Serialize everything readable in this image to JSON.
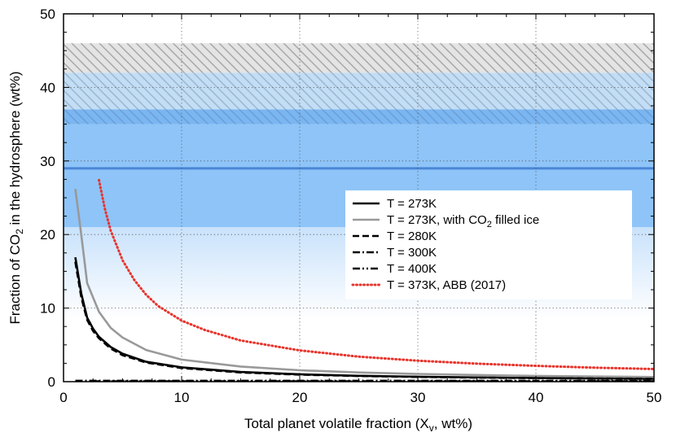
{
  "chart_data": {
    "type": "line",
    "xlabel": {
      "main": "Total planet volatile fraction (X",
      "sub": "v",
      "tail": ", wt%)"
    },
    "ylabel": {
      "main": "Fraction of CO",
      "sub": "2",
      "tail": " in the hydrosphere (wt%)"
    },
    "xlim": [
      0,
      50
    ],
    "ylim": [
      0,
      50
    ],
    "xticks": [
      0,
      10,
      20,
      30,
      40,
      50
    ],
    "yticks": [
      0,
      10,
      20,
      30,
      40,
      50
    ],
    "xtick_labels": [
      "0",
      "10",
      "20",
      "30",
      "40",
      "50"
    ],
    "ytick_labels": [
      "0",
      "10",
      "20",
      "30",
      "40",
      "50"
    ],
    "grid": "dotted",
    "bands": [
      {
        "name": "light-gradient-band",
        "y0": 8.5,
        "y1": 21,
        "color": "#cfe6fd"
      },
      {
        "name": "blue-band",
        "y0": 21,
        "y1": 35,
        "color": "#8ec4f8"
      },
      {
        "name": "darker-blue-band",
        "y0": 35,
        "y1": 37,
        "color": "#7ab6f2"
      },
      {
        "name": "light-hatched-band",
        "y0": 35,
        "y1": 42,
        "color": "#c3ddf4"
      },
      {
        "name": "gray-hatched-band",
        "y0": 42,
        "y1": 46,
        "color": "#e4e4e4"
      }
    ],
    "reference_line": {
      "name": "mean-line",
      "y": 29,
      "color": "#4a86d6"
    },
    "series": [
      {
        "name": "T = 273K",
        "style": "solid",
        "color": "#000000",
        "x": [
          1,
          1.5,
          2,
          2.5,
          3,
          4,
          5,
          7,
          10,
          15,
          20,
          25,
          30,
          35,
          40,
          45,
          50
        ],
        "y": [
          16.9,
          12.0,
          8.7,
          7.2,
          6.1,
          4.7,
          3.8,
          2.7,
          1.95,
          1.32,
          1.0,
          0.8,
          0.67,
          0.58,
          0.5,
          0.45,
          0.4
        ]
      },
      {
        "name": "T = 273K, with CO2 filled ice",
        "legend": {
          "main": "T = 273K, with CO",
          "sub": "2",
          "tail": " filled ice"
        },
        "style": "solid",
        "color": "#999999",
        "x": [
          1,
          1.5,
          2,
          3,
          4,
          5,
          7,
          10,
          15,
          20,
          25,
          30,
          35,
          40,
          45,
          50
        ],
        "y": [
          26.2,
          20.0,
          13.4,
          9.5,
          7.3,
          6.0,
          4.3,
          3.0,
          2.05,
          1.55,
          1.25,
          1.05,
          0.9,
          0.78,
          0.7,
          0.63
        ]
      },
      {
        "name": "T = 280K",
        "style": "dashed",
        "color": "#000000",
        "x": [
          1,
          1.5,
          2,
          2.5,
          3,
          4,
          5,
          7,
          10,
          15,
          20,
          25,
          30,
          35,
          40,
          45,
          50
        ],
        "y": [
          16.3,
          11.5,
          8.4,
          6.9,
          5.9,
          4.5,
          3.6,
          2.6,
          1.85,
          1.25,
          0.95,
          0.77,
          0.64,
          0.55,
          0.48,
          0.43,
          0.38
        ]
      },
      {
        "name": "T = 300K",
        "style": "dashdot",
        "color": "#000000",
        "x": [
          1,
          5,
          10,
          20,
          30,
          40,
          50
        ],
        "y": [
          0.12,
          0.12,
          0.12,
          0.12,
          0.12,
          0.12,
          0.12
        ]
      },
      {
        "name": "T = 400K",
        "style": "dashdotdot",
        "color": "#000000",
        "x": [
          1,
          5,
          10,
          20,
          30,
          40,
          50
        ],
        "y": [
          0.05,
          0.05,
          0.05,
          0.05,
          0.05,
          0.05,
          0.05
        ]
      },
      {
        "name": "T = 373K, ABB (2017)",
        "style": "dotted",
        "color": "#e8342c",
        "x": [
          3,
          3.5,
          4,
          5,
          6,
          7,
          8,
          10,
          12,
          15,
          20,
          25,
          30,
          35,
          40,
          45,
          50
        ],
        "y": [
          27.4,
          23.5,
          20.5,
          16.5,
          13.8,
          11.8,
          10.3,
          8.3,
          7.0,
          5.6,
          4.25,
          3.4,
          2.85,
          2.45,
          2.15,
          1.9,
          1.72
        ]
      }
    ]
  }
}
